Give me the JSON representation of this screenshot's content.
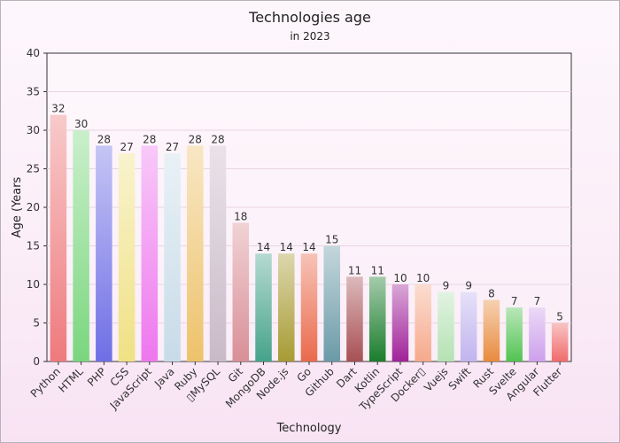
{
  "chart_data": {
    "type": "bar",
    "title": "Technologies age",
    "subtitle": "in 2023",
    "xlabel": "Technology",
    "ylabel": "Age (Years",
    "ylim": [
      0,
      40
    ],
    "yticks": [
      0,
      5,
      10,
      15,
      20,
      25,
      30,
      35,
      40
    ],
    "grid": true,
    "categories": [
      "Python",
      "HTML",
      "PHP",
      "CSS",
      "JavaScript",
      "Java",
      "Ruby",
      "▯MySQL",
      "Git",
      "MongoDB",
      "Node.js",
      "Go",
      "Github",
      "Dart",
      "Kotlin",
      "TypeScript",
      "Docker▯",
      "Vuejs",
      "Swift",
      "Rust",
      "Svelte",
      "Angular",
      "Flutter"
    ],
    "values": [
      32,
      30,
      28,
      27,
      28,
      27,
      28,
      28,
      18,
      14,
      14,
      14,
      15,
      11,
      11,
      10,
      10,
      9,
      9,
      8,
      7,
      7,
      5
    ],
    "colors": [
      "#ee7a7d",
      "#7ad67e",
      "#6f6ee6",
      "#f0e184",
      "#ee77ee",
      "#c7dbe8",
      "#edc26b",
      "#c9bac7",
      "#d98f97",
      "#46a38a",
      "#a79b33",
      "#ea6a4c",
      "#6b9aa7",
      "#a75054",
      "#1b7d2c",
      "#a1229a",
      "#f6a98c",
      "#b4e2b4",
      "#c1b4ee",
      "#e88b3f",
      "#52c352",
      "#cda0ec",
      "#f06b6b"
    ]
  }
}
